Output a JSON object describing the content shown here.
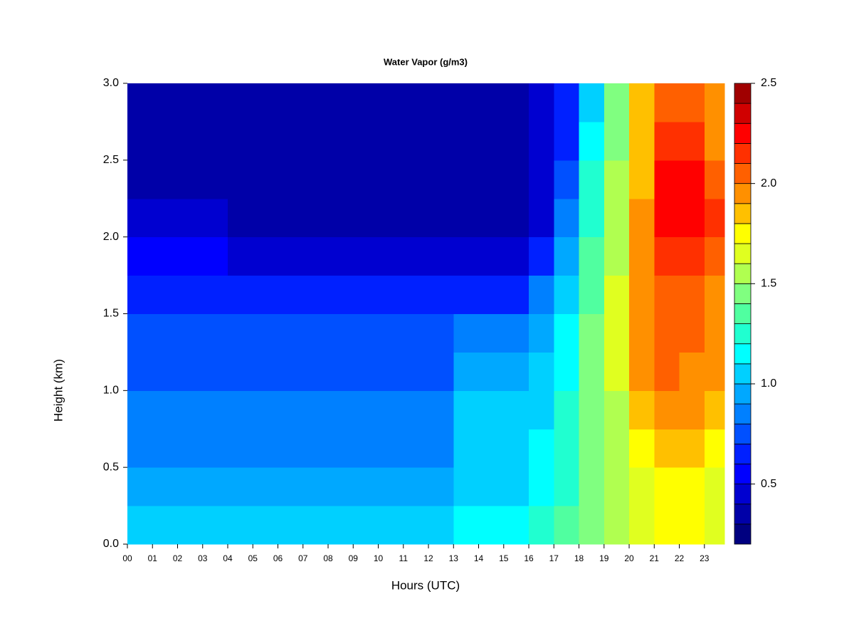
{
  "chart_data": {
    "type": "heatmap",
    "title": "Water Vapor (g/m3)",
    "xlabel": "Hours (UTC)",
    "ylabel": "Height (km)",
    "xlim": [
      0,
      23.8
    ],
    "ylim": [
      0,
      3
    ],
    "xbins": [
      0,
      1,
      2,
      3,
      4,
      5,
      6,
      7,
      8,
      9,
      10,
      11,
      12,
      13,
      14,
      15,
      16,
      17,
      18,
      19,
      20,
      21,
      22,
      23,
      23.8
    ],
    "ybins": [
      0,
      0.25,
      0.5,
      0.75,
      1,
      1.25,
      1.5,
      1.75,
      2,
      2.25,
      2.5,
      2.75,
      3
    ],
    "xticks": [
      {
        "value": 0,
        "label": "00"
      },
      {
        "value": 1,
        "label": "01"
      },
      {
        "value": 2,
        "label": "02"
      },
      {
        "value": 3,
        "label": "03"
      },
      {
        "value": 4,
        "label": "04"
      },
      {
        "value": 5,
        "label": "05"
      },
      {
        "value": 6,
        "label": "06"
      },
      {
        "value": 7,
        "label": "07"
      },
      {
        "value": 8,
        "label": "08"
      },
      {
        "value": 9,
        "label": "09"
      },
      10,
      11,
      12,
      13,
      14,
      15,
      16,
      17,
      18,
      19,
      20,
      21,
      22,
      23
    ],
    "yticks": [
      {
        "value": 0,
        "label": "0.0"
      },
      0.5,
      {
        "value": 1,
        "label": "1.0"
      },
      1.5,
      {
        "value": 2,
        "label": "2.0"
      },
      2.5,
      {
        "value": 3,
        "label": "3.0"
      }
    ],
    "values": [
      [
        1.0,
        1.0,
        1.0,
        1.0,
        1.0,
        1.0,
        1.0,
        1.0,
        1.0,
        1.0,
        1.0,
        1.0,
        1.0,
        1.1,
        1.1,
        1.1,
        1.2,
        1.3,
        1.4,
        1.5,
        1.6,
        1.7,
        1.7,
        1.6
      ],
      [
        0.9,
        0.9,
        0.9,
        0.9,
        0.9,
        0.9,
        0.9,
        0.9,
        0.9,
        0.9,
        0.9,
        0.9,
        0.9,
        1.0,
        1.0,
        1.0,
        1.1,
        1.25,
        1.4,
        1.5,
        1.65,
        1.7,
        1.7,
        1.65
      ],
      [
        0.8,
        0.8,
        0.8,
        0.8,
        0.85,
        0.85,
        0.85,
        0.85,
        0.85,
        0.85,
        0.85,
        0.85,
        0.85,
        1.0,
        1.0,
        1.0,
        1.1,
        1.2,
        1.4,
        1.5,
        1.7,
        1.8,
        1.8,
        1.75
      ],
      [
        0.8,
        0.8,
        0.8,
        0.8,
        0.8,
        0.8,
        0.8,
        0.8,
        0.8,
        0.8,
        0.8,
        0.8,
        0.8,
        1.0,
        1.0,
        1.0,
        1.05,
        1.2,
        1.45,
        1.55,
        1.8,
        1.9,
        1.9,
        1.85
      ],
      [
        0.7,
        0.7,
        0.7,
        0.7,
        0.75,
        0.75,
        0.75,
        0.75,
        0.75,
        0.75,
        0.75,
        0.75,
        0.75,
        0.95,
        0.95,
        0.95,
        1.0,
        1.15,
        1.4,
        1.6,
        1.9,
        2.0,
        1.95,
        1.9
      ],
      [
        0.7,
        0.7,
        0.7,
        0.7,
        0.7,
        0.7,
        0.7,
        0.7,
        0.7,
        0.7,
        0.7,
        0.7,
        0.7,
        0.85,
        0.85,
        0.85,
        0.9,
        1.1,
        1.4,
        1.6,
        1.9,
        2.0,
        2.0,
        1.95
      ],
      [
        0.6,
        0.6,
        0.6,
        0.6,
        0.6,
        0.6,
        0.6,
        0.6,
        0.6,
        0.6,
        0.6,
        0.6,
        0.6,
        0.65,
        0.65,
        0.65,
        0.8,
        1.0,
        1.35,
        1.6,
        1.9,
        2.0,
        2.0,
        1.95
      ],
      [
        0.5,
        0.5,
        0.5,
        0.5,
        0.45,
        0.45,
        0.45,
        0.45,
        0.45,
        0.45,
        0.45,
        0.45,
        0.45,
        0.45,
        0.45,
        0.45,
        0.6,
        0.9,
        1.3,
        1.55,
        1.9,
        2.1,
        2.1,
        2.0
      ],
      [
        0.4,
        0.4,
        0.4,
        0.4,
        0.35,
        0.35,
        0.35,
        0.35,
        0.35,
        0.35,
        0.35,
        0.35,
        0.35,
        0.35,
        0.35,
        0.35,
        0.45,
        0.8,
        1.25,
        1.5,
        1.9,
        2.2,
        2.2,
        2.1
      ],
      [
        0.35,
        0.35,
        0.35,
        0.35,
        0.3,
        0.3,
        0.3,
        0.3,
        0.3,
        0.3,
        0.3,
        0.3,
        0.3,
        0.3,
        0.3,
        0.3,
        0.4,
        0.7,
        1.2,
        1.5,
        1.85,
        2.2,
        2.2,
        2.0
      ],
      [
        0.35,
        0.35,
        0.35,
        0.35,
        0.3,
        0.3,
        0.3,
        0.3,
        0.3,
        0.3,
        0.3,
        0.3,
        0.3,
        0.3,
        0.3,
        0.3,
        0.4,
        0.65,
        1.1,
        1.45,
        1.8,
        2.1,
        2.1,
        1.95
      ],
      [
        0.35,
        0.35,
        0.35,
        0.35,
        0.3,
        0.3,
        0.3,
        0.3,
        0.3,
        0.3,
        0.3,
        0.3,
        0.3,
        0.3,
        0.3,
        0.3,
        0.4,
        0.65,
        1.05,
        1.4,
        1.8,
        2.0,
        2.0,
        1.9
      ]
    ],
    "levels": [
      0.2,
      0.3,
      0.4,
      0.5,
      0.6,
      0.7,
      0.8,
      0.9,
      1.0,
      1.1,
      1.2,
      1.3,
      1.4,
      1.5,
      1.6,
      1.7,
      1.8,
      1.9,
      2.0,
      2.1,
      2.2,
      2.3,
      2.4,
      2.5
    ],
    "colors": [
      "#000080",
      "#0000a8",
      "#0000d0",
      "#0000ff",
      "#0020ff",
      "#0050ff",
      "#0080ff",
      "#00a8ff",
      "#00d0ff",
      "#00ffff",
      "#20ffd0",
      "#50ffa0",
      "#80ff80",
      "#b0ff50",
      "#e0ff20",
      "#ffff00",
      "#ffc000",
      "#ff9000",
      "#ff6000",
      "#ff3000",
      "#ff0000",
      "#d00000",
      "#a00000"
    ],
    "cticks": [
      0.5,
      {
        "value": 1,
        "label": "1.0"
      },
      1.5,
      {
        "value": 2,
        "label": "2.0"
      },
      2.5
    ]
  }
}
